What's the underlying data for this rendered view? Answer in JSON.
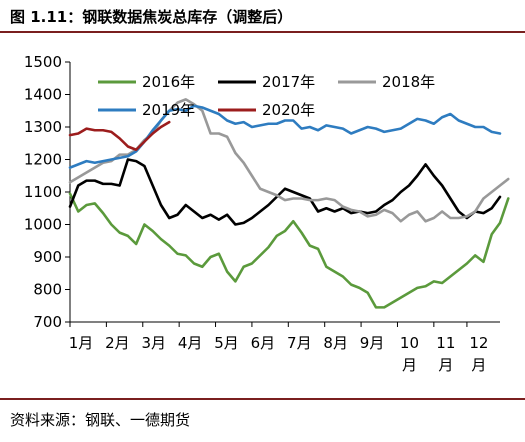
{
  "figure": {
    "title": "图 1.11：钢联数据焦炭总库存（调整后）",
    "source": "资料来源：钢联、一德期货"
  },
  "chart_data": {
    "type": "line",
    "title": "",
    "xlabel": "",
    "ylabel": "",
    "ylim": [
      700,
      1500
    ],
    "yticks": [
      700,
      800,
      900,
      1000,
      1100,
      1200,
      1300,
      1400,
      1500
    ],
    "xlim": [
      0,
      52
    ],
    "month_ticks": [
      {
        "label": "1月",
        "x": 0
      },
      {
        "label": "2月",
        "x": 4.4
      },
      {
        "label": "3月",
        "x": 8.8
      },
      {
        "label": "4月",
        "x": 13.2
      },
      {
        "label": "5月",
        "x": 17.6
      },
      {
        "label": "6月",
        "x": 22
      },
      {
        "label": "7月",
        "x": 26.4
      },
      {
        "label": "8月",
        "x": 30.8
      },
      {
        "label": "9月",
        "x": 35.2
      },
      {
        "label": "10月",
        "x": 39.6
      },
      {
        "label": "11月",
        "x": 44
      },
      {
        "label": "12月",
        "x": 48
      }
    ],
    "legend_position": "top-left",
    "series": [
      {
        "name": "2016年",
        "color": "#5b9a3c",
        "values": [
          1095,
          1040,
          1060,
          1065,
          1035,
          1000,
          975,
          965,
          940,
          1000,
          980,
          955,
          935,
          910,
          905,
          880,
          870,
          900,
          910,
          855,
          825,
          870,
          880,
          905,
          930,
          965,
          980,
          1010,
          975,
          935,
          925,
          870,
          855,
          840,
          815,
          805,
          790,
          745,
          745,
          760,
          775,
          790,
          805,
          810,
          825,
          820,
          840,
          860,
          880,
          905,
          885,
          970,
          1005,
          1080
        ]
      },
      {
        "name": "2017年",
        "color": "#000000",
        "values": [
          1055,
          1120,
          1135,
          1135,
          1125,
          1125,
          1120,
          1200,
          1195,
          1180,
          1120,
          1060,
          1020,
          1030,
          1060,
          1040,
          1020,
          1030,
          1015,
          1030,
          1000,
          1005,
          1020,
          1040,
          1060,
          1085,
          1110,
          1100,
          1090,
          1080,
          1040,
          1050,
          1040,
          1050,
          1035,
          1040,
          1035,
          1040,
          1060,
          1075,
          1100,
          1120,
          1150,
          1185,
          1150,
          1120,
          1080,
          1040,
          1020,
          1040,
          1035,
          1050,
          1085
        ]
      },
      {
        "name": "2018年",
        "color": "#999999",
        "values": [
          1130,
          1145,
          1160,
          1175,
          1190,
          1195,
          1215,
          1215,
          1230,
          1260,
          1280,
          1320,
          1350,
          1375,
          1385,
          1370,
          1350,
          1280,
          1280,
          1270,
          1220,
          1190,
          1150,
          1110,
          1100,
          1090,
          1075,
          1080,
          1080,
          1075,
          1075,
          1080,
          1075,
          1055,
          1045,
          1040,
          1025,
          1030,
          1045,
          1035,
          1010,
          1030,
          1040,
          1010,
          1020,
          1040,
          1020,
          1020,
          1025,
          1040,
          1080,
          1100,
          1120,
          1140
        ]
      },
      {
        "name": "2019年",
        "color": "#2e7cc0",
        "values": [
          1175,
          1185,
          1195,
          1190,
          1195,
          1200,
          1205,
          1210,
          1225,
          1255,
          1290,
          1320,
          1350,
          1355,
          1350,
          1365,
          1360,
          1350,
          1340,
          1320,
          1310,
          1315,
          1300,
          1305,
          1310,
          1310,
          1320,
          1320,
          1295,
          1300,
          1290,
          1305,
          1300,
          1295,
          1280,
          1290,
          1300,
          1295,
          1285,
          1290,
          1295,
          1310,
          1325,
          1320,
          1310,
          1330,
          1340,
          1320,
          1310,
          1300,
          1300,
          1285,
          1280
        ]
      },
      {
        "name": "2020年",
        "color": "#9c1d1d",
        "values": [
          1275,
          1280,
          1295,
          1290,
          1290,
          1285,
          1265,
          1240,
          1230,
          1255,
          1280,
          1300,
          1315
        ]
      }
    ]
  }
}
